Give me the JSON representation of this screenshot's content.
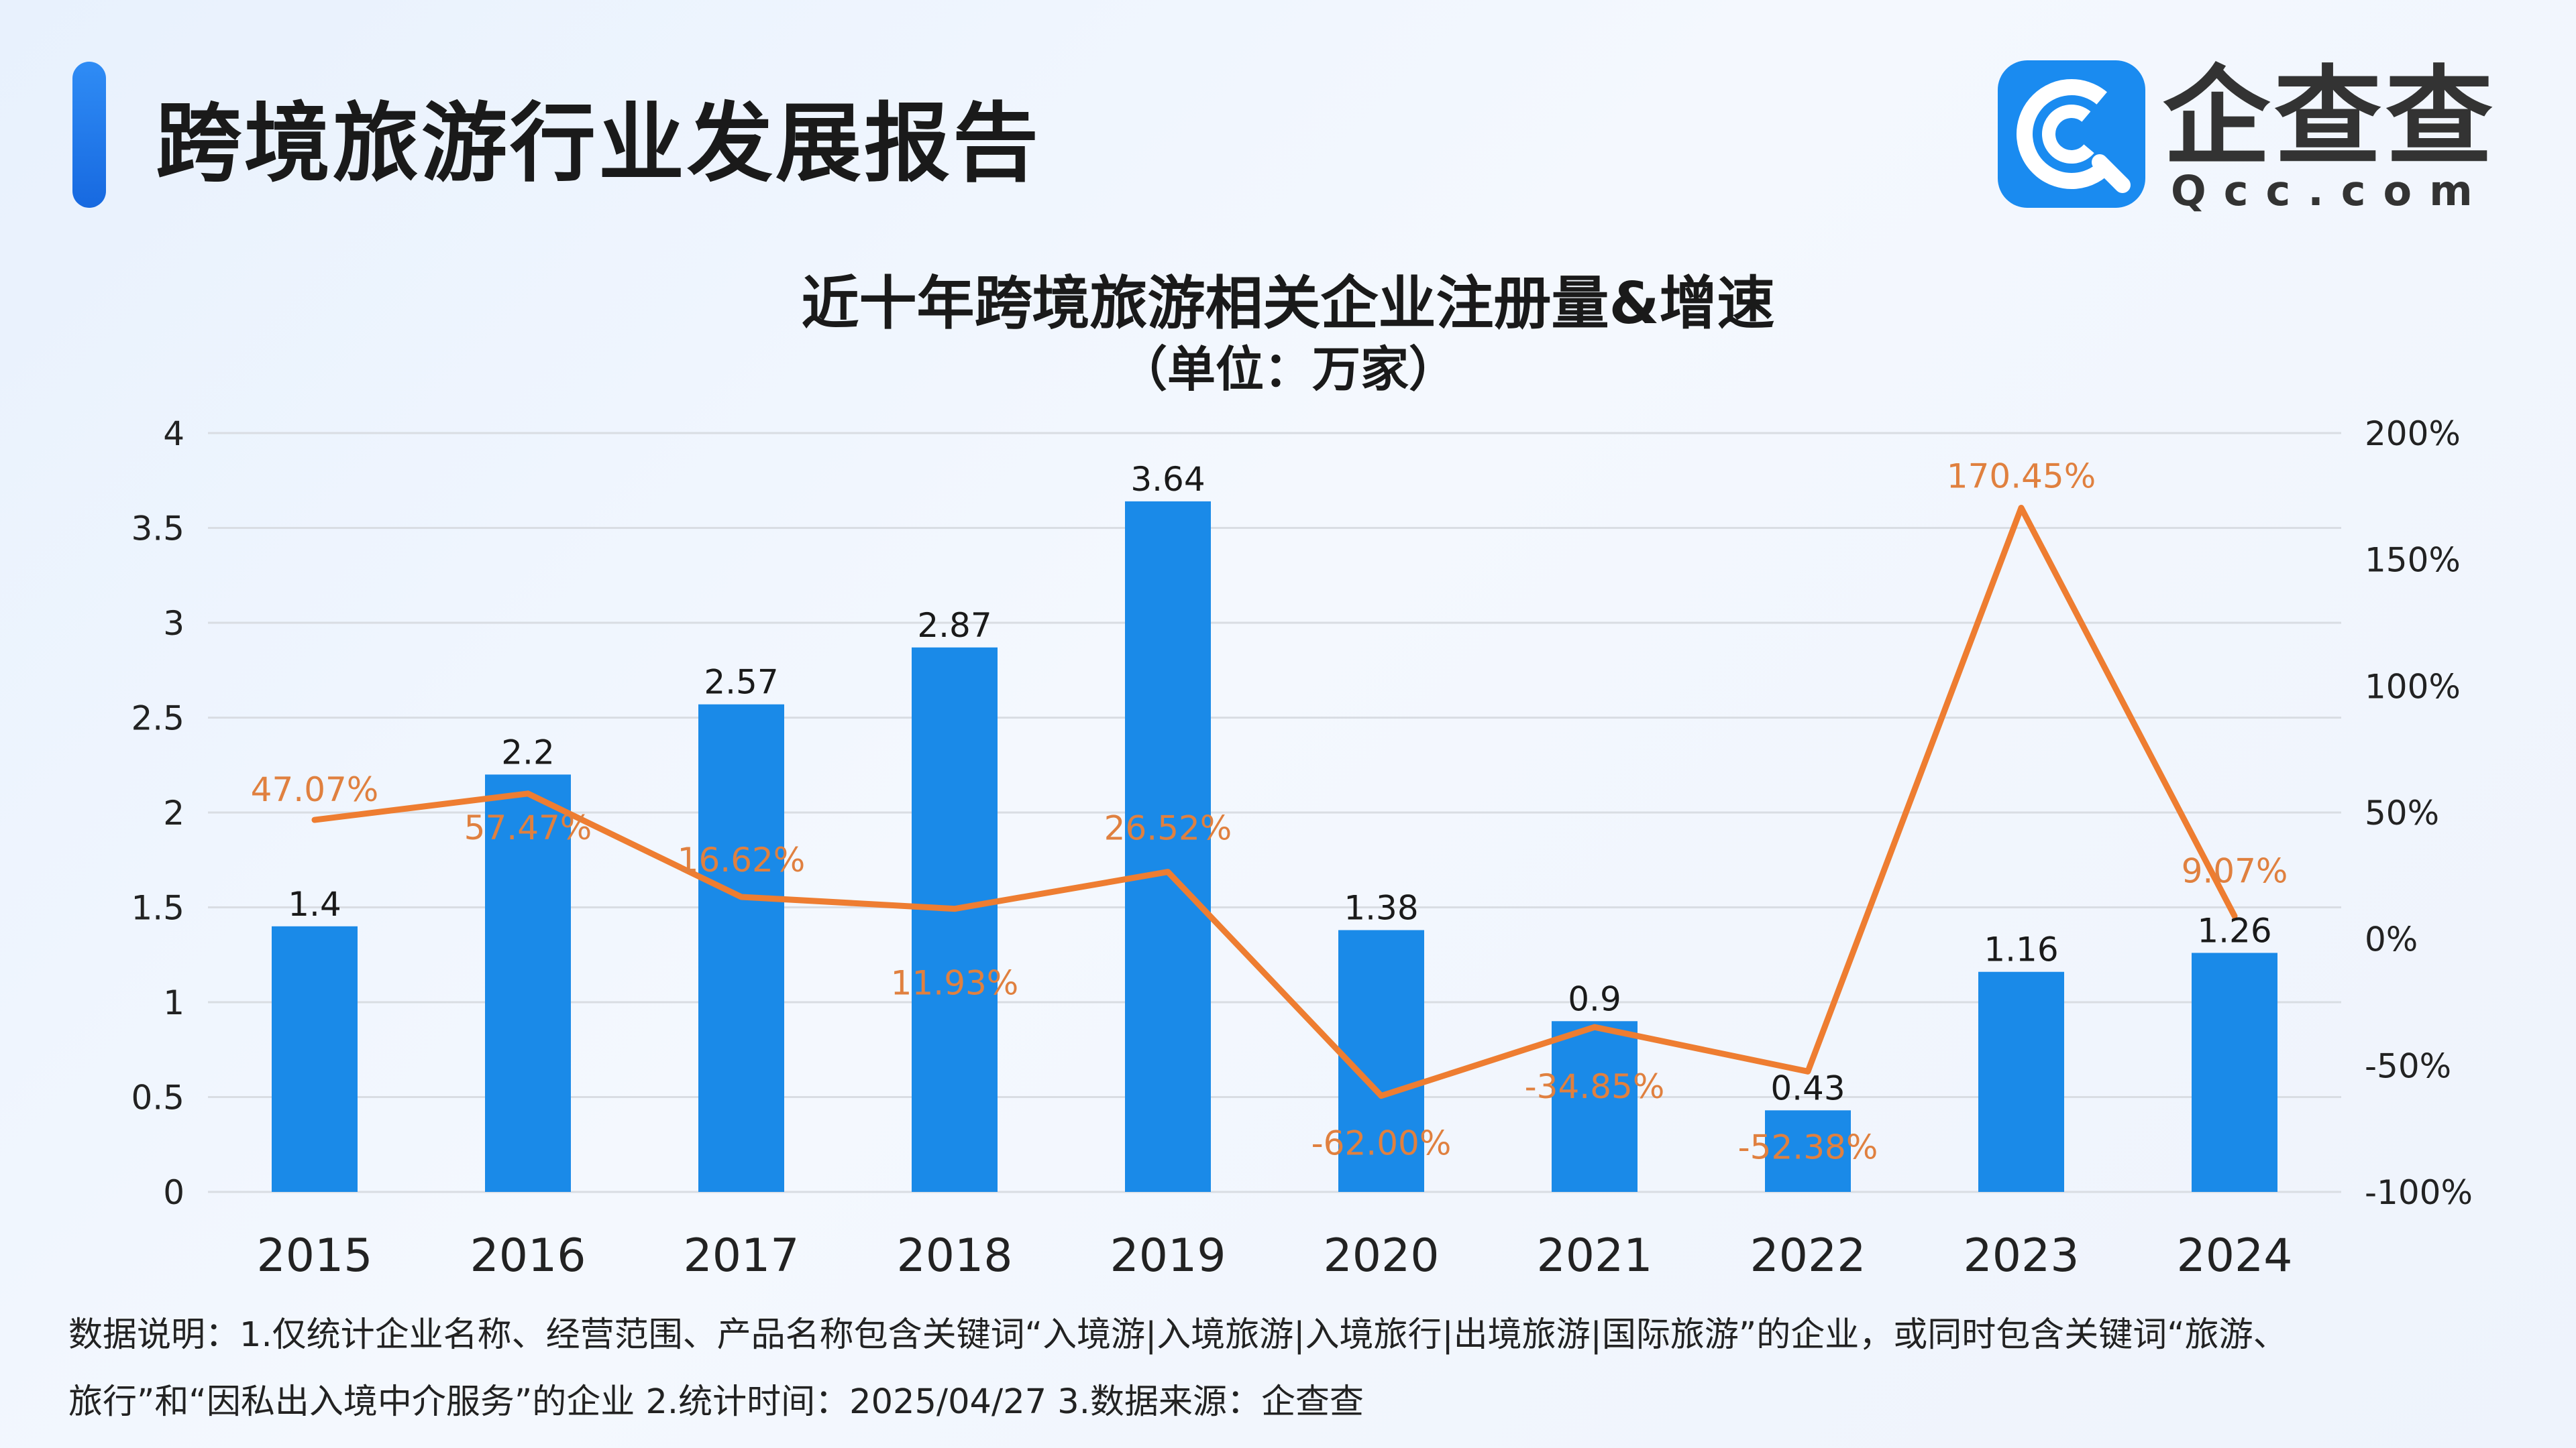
{
  "header": {
    "title": "跨境旅游行业发展报告"
  },
  "logo": {
    "name": "企查查",
    "domain": "Qcc.com",
    "brand_color": "#1a8bf0"
  },
  "colors": {
    "bar": "#1a8ae8",
    "line": "#ee7d31",
    "bar_label": "#1a1a1a",
    "line_label": "#e0803f",
    "grid": "#d9dde3"
  },
  "chart_data": {
    "type": "bar",
    "title": "近十年跨境旅游相关企业注册量&增速",
    "subtitle": "（单位：万家）",
    "categories": [
      "2015",
      "2016",
      "2017",
      "2018",
      "2019",
      "2020",
      "2021",
      "2022",
      "2023",
      "2024"
    ],
    "series": [
      {
        "type": "bar",
        "axis": "left",
        "values": [
          1.4,
          2.2,
          2.57,
          2.87,
          3.64,
          1.38,
          0.9,
          0.43,
          1.16,
          1.26
        ],
        "labels": [
          "1.4",
          "2.2",
          "2.57",
          "2.87",
          "3.64",
          "1.38",
          "0.9",
          "0.43",
          "1.16",
          "1.26"
        ]
      },
      {
        "type": "line",
        "axis": "right",
        "values": [
          47.07,
          57.47,
          16.62,
          11.93,
          26.52,
          -62.0,
          -34.85,
          -52.38,
          170.45,
          9.07
        ],
        "labels": [
          "47.07%",
          "57.47%",
          "16.62%",
          "11.93%",
          "26.52%",
          "-62.00%",
          "-34.85%",
          "-52.38%",
          "170.45%",
          "9.07%"
        ]
      }
    ],
    "y_left": {
      "min": 0,
      "max": 4,
      "ticks": [
        "0",
        "0.5",
        "1",
        "1.5",
        "2",
        "2.5",
        "3",
        "3.5",
        "4"
      ]
    },
    "y_right": {
      "min": -100,
      "max": 200,
      "ticks": [
        "-100%",
        "-50%",
        "0%",
        "50%",
        "100%",
        "150%",
        "200%"
      ]
    },
    "grid": true
  },
  "footnote": {
    "line1": "数据说明：1.仅统计企业名称、经营范围、产品名称包含关键词“入境游|入境旅游|入境旅行|出境旅游|国际旅游”的企业，或同时包含关键词“旅游、",
    "line2": "旅行”和“因私出入境中介服务”的企业   2.统计时间：2025/04/27    3.数据来源：企查查"
  }
}
